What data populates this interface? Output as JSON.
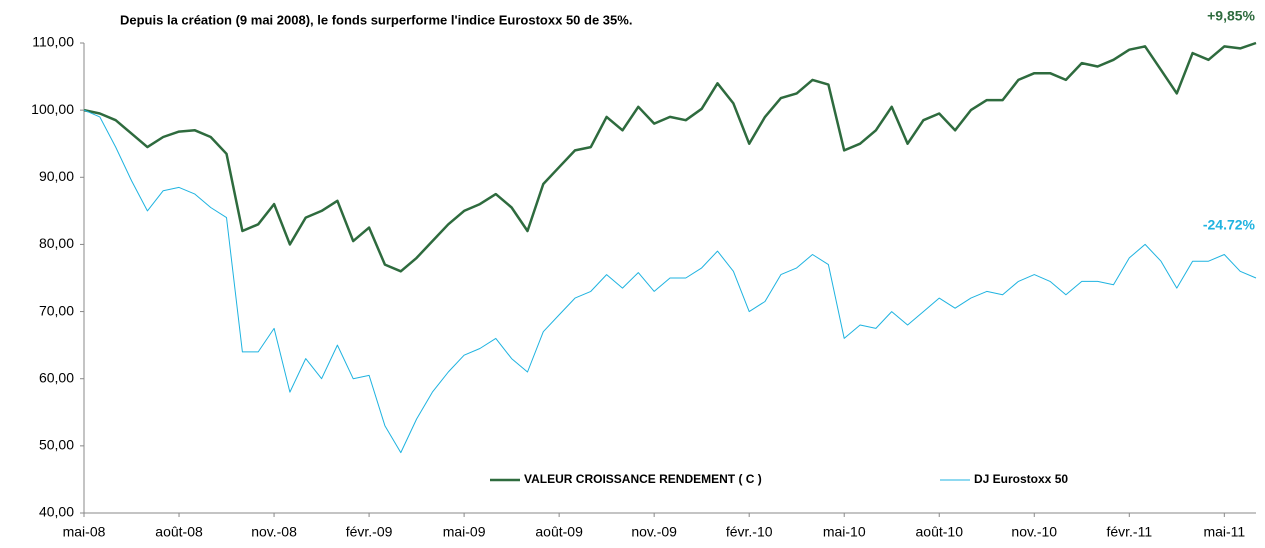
{
  "chart_data": {
    "type": "line",
    "title": "Depuis la création (9 mai 2008), le fonds surperforme l'indice Eurostoxx 50 de 35%.",
    "categories": [
      "mai-08",
      null,
      null,
      null,
      null,
      null,
      "août-08",
      null,
      null,
      null,
      null,
      null,
      "nov.-08",
      null,
      null,
      null,
      null,
      null,
      "févr.-09",
      null,
      null,
      null,
      null,
      null,
      "mai-09",
      null,
      null,
      null,
      null,
      null,
      "août-09",
      null,
      null,
      null,
      null,
      null,
      "nov.-09",
      null,
      null,
      null,
      null,
      null,
      "févr.-10",
      null,
      null,
      null,
      null,
      null,
      "mai-10",
      null,
      null,
      null,
      null,
      null,
      "août-10",
      null,
      null,
      null,
      null,
      null,
      "nov.-10",
      null,
      null,
      null,
      null,
      null,
      "févr.-11",
      null,
      null,
      null,
      null,
      null,
      "mai-11",
      null,
      null
    ],
    "series": [
      {
        "name": "VALEUR CROISSANCE RENDEMENT ( C )",
        "color": "#2e6b3e",
        "values": [
          100,
          99.5,
          98.5,
          96.5,
          94.5,
          96,
          96.8,
          97,
          96,
          93.5,
          82,
          83,
          86,
          80,
          84,
          85,
          86.5,
          80.5,
          82.5,
          77,
          76,
          78,
          80.5,
          83,
          85,
          86,
          87.5,
          85.5,
          82,
          89,
          91.5,
          94,
          94.5,
          99,
          97,
          100.5,
          98,
          99,
          98.5,
          100.2,
          104,
          101,
          95,
          99,
          101.8,
          102.5,
          104.5,
          103.8,
          94,
          95,
          97,
          100.5,
          95,
          98.5,
          99.5,
          97,
          100,
          101.5,
          101.5,
          104.5,
          105.5,
          105.5,
          104.5,
          107,
          106.5,
          107.5,
          109,
          109.5,
          106,
          102.5,
          108.5,
          107.5,
          109.5,
          109.2,
          110
        ]
      },
      {
        "name": "DJ Eurostoxx 50",
        "color": "#1fb3e0",
        "values": [
          100,
          99,
          94.5,
          89.5,
          85,
          88,
          88.5,
          87.5,
          85.5,
          84,
          64,
          64,
          67.5,
          58,
          63,
          60,
          65,
          60,
          60.5,
          53,
          49,
          54,
          58,
          61,
          63.5,
          64.5,
          66,
          63,
          61,
          67,
          69.5,
          72,
          73,
          75.5,
          73.5,
          75.8,
          73,
          75,
          75,
          76.5,
          79,
          76,
          70,
          71.5,
          75.5,
          76.5,
          78.5,
          77,
          66,
          68,
          67.5,
          70,
          68,
          70,
          72,
          70.5,
          72,
          73,
          72.5,
          74.5,
          75.5,
          74.5,
          72.5,
          74.5,
          74.5,
          74,
          78,
          80,
          77.5,
          73.5,
          77.5,
          77.5,
          78.5,
          76,
          75
        ]
      }
    ],
    "annotations": [
      "+9,85%",
      "-24.72%"
    ],
    "ylim": [
      40,
      110
    ],
    "yticks": [
      {
        "value": 40,
        "label": "40,00"
      },
      {
        "value": 50,
        "label": "50,00"
      },
      {
        "value": 60,
        "label": "60,00"
      },
      {
        "value": 70,
        "label": "70,00"
      },
      {
        "value": 80,
        "label": "80,00"
      },
      {
        "value": 90,
        "label": "90,00"
      },
      {
        "value": 100,
        "label": "100,00"
      },
      {
        "value": 110,
        "label": "110,00"
      }
    ],
    "grid": false
  }
}
